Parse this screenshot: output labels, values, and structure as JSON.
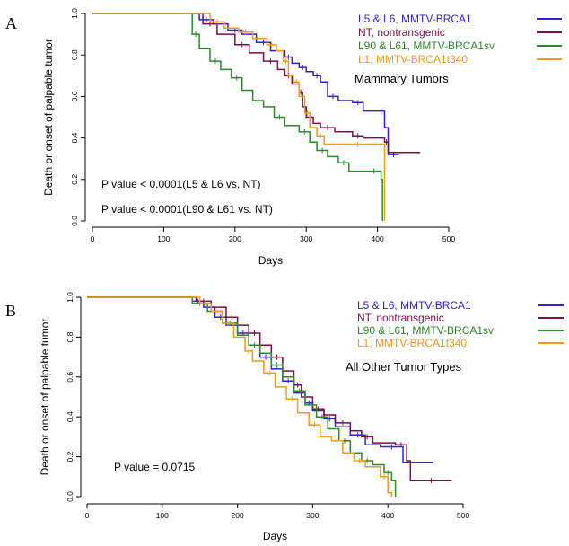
{
  "chart_data": [
    {
      "type": "line",
      "panel_label": "A",
      "ylabel": "Death or onset of palpable tumor",
      "xlabel": "Days",
      "xlim": [
        0,
        500
      ],
      "ylim": [
        0,
        1
      ],
      "x_ticks": [
        "0",
        "100",
        "200",
        "300",
        "400",
        "500"
      ],
      "y_ticks": [
        "0.0",
        "0.2",
        "0.4",
        "0.6",
        "0.8",
        "1.0"
      ],
      "annotation": "Mammary Tumors",
      "p_values": [
        "P value < 0.0001(L5 & L6 vs. NT)",
        "P value < 0.0001(L90 & L61 vs. NT)"
      ],
      "legend_position": "top-right",
      "series": [
        {
          "name": "L5 & L6, MMTV-BRCA1",
          "color": "#3322cc",
          "points": [
            [
              0,
              1
            ],
            [
              130,
              1
            ],
            [
              150,
              0.97
            ],
            [
              170,
              0.95
            ],
            [
              190,
              0.92
            ],
            [
              210,
              0.9
            ],
            [
              230,
              0.86
            ],
            [
              250,
              0.82
            ],
            [
              270,
              0.79
            ],
            [
              280,
              0.76
            ],
            [
              290,
              0.74
            ],
            [
              300,
              0.72
            ],
            [
              310,
              0.7
            ],
            [
              320,
              0.67
            ],
            [
              330,
              0.6
            ],
            [
              345,
              0.58
            ],
            [
              365,
              0.57
            ],
            [
              380,
              0.53
            ],
            [
              400,
              0.53
            ],
            [
              410,
              0.45
            ],
            [
              415,
              0.32
            ],
            [
              430,
              0.32
            ]
          ]
        },
        {
          "name": "NT, nontransgenic",
          "color": "#7a1048",
          "points": [
            [
              0,
              1
            ],
            [
              140,
              1
            ],
            [
              155,
              0.95
            ],
            [
              175,
              0.9
            ],
            [
              200,
              0.85
            ],
            [
              220,
              0.81
            ],
            [
              240,
              0.77
            ],
            [
              260,
              0.73
            ],
            [
              270,
              0.7
            ],
            [
              280,
              0.66
            ],
            [
              290,
              0.62
            ],
            [
              295,
              0.55
            ],
            [
              300,
              0.5
            ],
            [
              310,
              0.47
            ],
            [
              320,
              0.45
            ],
            [
              340,
              0.43
            ],
            [
              365,
              0.41
            ],
            [
              380,
              0.4
            ],
            [
              410,
              0.38
            ],
            [
              415,
              0.33
            ],
            [
              460,
              0.33
            ]
          ]
        },
        {
          "name": "L90 & L61, MMTV-BRCA1sv",
          "color": "#2a8a2a",
          "points": [
            [
              0,
              1
            ],
            [
              125,
              1
            ],
            [
              140,
              0.9
            ],
            [
              150,
              0.83
            ],
            [
              165,
              0.77
            ],
            [
              180,
              0.73
            ],
            [
              195,
              0.69
            ],
            [
              210,
              0.63
            ],
            [
              225,
              0.58
            ],
            [
              240,
              0.55
            ],
            [
              255,
              0.5
            ],
            [
              270,
              0.46
            ],
            [
              290,
              0.43
            ],
            [
              305,
              0.38
            ],
            [
              315,
              0.34
            ],
            [
              330,
              0.31
            ],
            [
              345,
              0.28
            ],
            [
              360,
              0.24
            ],
            [
              385,
              0.24
            ],
            [
              405,
              0.2
            ],
            [
              407,
              0.0
            ]
          ]
        },
        {
          "name": "L1, MMTV-BRCA1t340",
          "color": "#f09a1e",
          "points": [
            [
              0,
              1
            ],
            [
              155,
              1
            ],
            [
              165,
              0.96
            ],
            [
              185,
              0.93
            ],
            [
              205,
              0.91
            ],
            [
              225,
              0.88
            ],
            [
              245,
              0.85
            ],
            [
              258,
              0.82
            ],
            [
              268,
              0.77
            ],
            [
              275,
              0.7
            ],
            [
              282,
              0.67
            ],
            [
              290,
              0.6
            ],
            [
              298,
              0.52
            ],
            [
              305,
              0.45
            ],
            [
              315,
              0.41
            ],
            [
              325,
              0.37
            ],
            [
              350,
              0.37
            ],
            [
              395,
              0.37
            ],
            [
              410,
              0.0
            ]
          ]
        }
      ]
    },
    {
      "type": "line",
      "panel_label": "B",
      "ylabel": "Death or onset of palpable tumor",
      "xlabel": "Days",
      "xlim": [
        0,
        500
      ],
      "ylim": [
        0,
        1
      ],
      "x_ticks": [
        "0",
        "100",
        "200",
        "300",
        "400",
        "500"
      ],
      "y_ticks": [
        "0.0",
        "0.2",
        "0.4",
        "0.6",
        "0.8",
        "1.0"
      ],
      "annotation": "All Other Tumor Types",
      "p_values": [
        "P value = 0.0715"
      ],
      "legend_position": "top-right",
      "series": [
        {
          "name": "L5 & L6, MMTV-BRCA1",
          "color": "#3322cc",
          "points": [
            [
              0,
              1
            ],
            [
              125,
              1
            ],
            [
              140,
              0.98
            ],
            [
              155,
              0.95
            ],
            [
              170,
              0.9
            ],
            [
              185,
              0.86
            ],
            [
              200,
              0.82
            ],
            [
              215,
              0.76
            ],
            [
              230,
              0.7
            ],
            [
              245,
              0.64
            ],
            [
              260,
              0.58
            ],
            [
              275,
              0.52
            ],
            [
              290,
              0.47
            ],
            [
              300,
              0.43
            ],
            [
              315,
              0.39
            ],
            [
              330,
              0.35
            ],
            [
              350,
              0.31
            ],
            [
              370,
              0.26
            ],
            [
              390,
              0.25
            ],
            [
              420,
              0.17
            ],
            [
              460,
              0.17
            ]
          ]
        },
        {
          "name": "NT, nontransgenic",
          "color": "#7a1048",
          "points": [
            [
              0,
              1
            ],
            [
              125,
              1
            ],
            [
              145,
              0.98
            ],
            [
              165,
              0.95
            ],
            [
              185,
              0.9
            ],
            [
              200,
              0.86
            ],
            [
              215,
              0.82
            ],
            [
              230,
              0.76
            ],
            [
              245,
              0.7
            ],
            [
              260,
              0.63
            ],
            [
              275,
              0.56
            ],
            [
              285,
              0.5
            ],
            [
              300,
              0.44
            ],
            [
              315,
              0.41
            ],
            [
              330,
              0.37
            ],
            [
              350,
              0.33
            ],
            [
              365,
              0.3
            ],
            [
              380,
              0.27
            ],
            [
              410,
              0.26
            ],
            [
              425,
              0.18
            ],
            [
              430,
              0.08
            ],
            [
              485,
              0.08
            ]
          ]
        },
        {
          "name": "L90 & L61, MMTV-BRCA1sv",
          "color": "#2a8a2a",
          "points": [
            [
              0,
              1
            ],
            [
              125,
              1
            ],
            [
              140,
              0.97
            ],
            [
              160,
              0.93
            ],
            [
              180,
              0.87
            ],
            [
              200,
              0.81
            ],
            [
              215,
              0.76
            ],
            [
              230,
              0.72
            ],
            [
              245,
              0.66
            ],
            [
              260,
              0.6
            ],
            [
              275,
              0.53
            ],
            [
              290,
              0.46
            ],
            [
              305,
              0.4
            ],
            [
              320,
              0.34
            ],
            [
              335,
              0.28
            ],
            [
              350,
              0.22
            ],
            [
              365,
              0.18
            ],
            [
              380,
              0.16
            ],
            [
              395,
              0.12
            ],
            [
              405,
              0.08
            ],
            [
              410,
              0.0
            ]
          ]
        },
        {
          "name": "L1, MMTV-BRCA1t340",
          "color": "#f09a1e",
          "points": [
            [
              0,
              1
            ],
            [
              130,
              1
            ],
            [
              150,
              0.97
            ],
            [
              165,
              0.93
            ],
            [
              180,
              0.87
            ],
            [
              195,
              0.8
            ],
            [
              210,
              0.73
            ],
            [
              220,
              0.68
            ],
            [
              235,
              0.62
            ],
            [
              250,
              0.55
            ],
            [
              265,
              0.49
            ],
            [
              280,
              0.42
            ],
            [
              295,
              0.36
            ],
            [
              310,
              0.3
            ],
            [
              325,
              0.28
            ],
            [
              340,
              0.22
            ],
            [
              355,
              0.18
            ],
            [
              370,
              0.15
            ],
            [
              390,
              0.1
            ],
            [
              400,
              0.02
            ],
            [
              405,
              0.0
            ]
          ]
        }
      ]
    }
  ]
}
